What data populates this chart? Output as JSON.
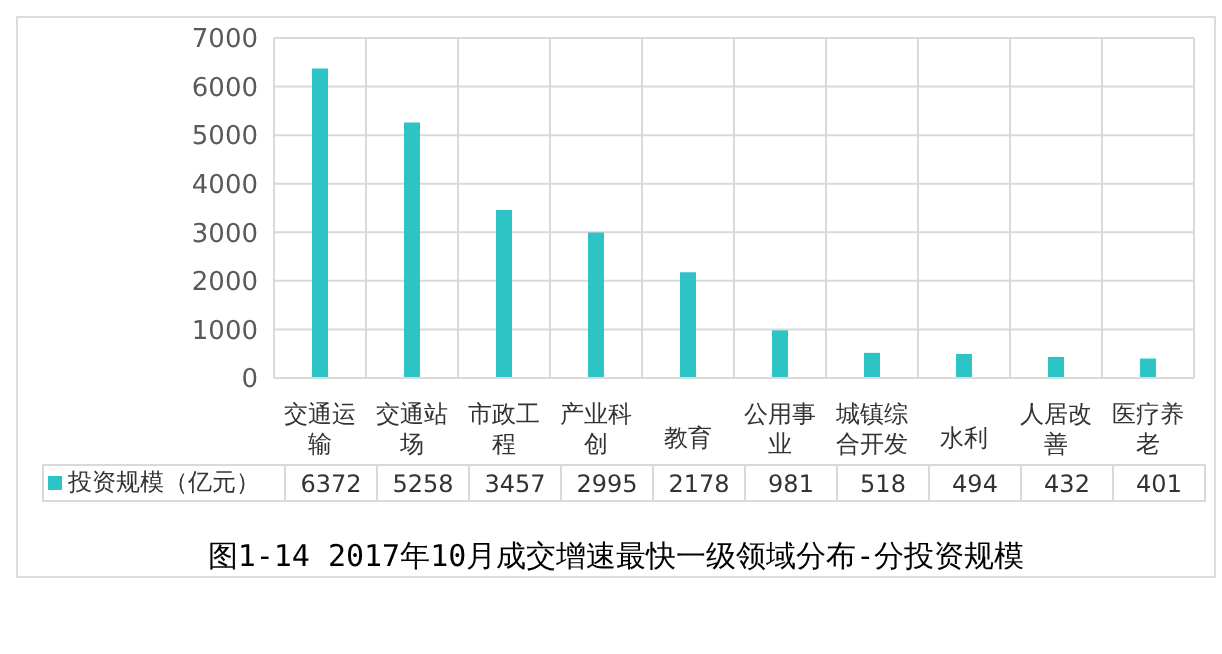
{
  "chart_data": {
    "type": "bar",
    "title": "图1-14 2017年10月成交增速最快一级领域分布-分投资规模",
    "categories": [
      "交通运输",
      "交通站场",
      "市政工程",
      "产业科创",
      "教育",
      "公用事业",
      "城镇综合开发",
      "水利",
      "人居改善",
      "医疗养老"
    ],
    "series": [
      {
        "name": "投资规模（亿元）",
        "color": "#2ec4c6",
        "values": [
          6372,
          5258,
          3457,
          2995,
          2178,
          981,
          518,
          494,
          432,
          401
        ]
      }
    ],
    "ylim": [
      0,
      7000
    ],
    "yticks": [
      0,
      1000,
      2000,
      3000,
      4000,
      5000,
      6000,
      7000
    ],
    "grid": true,
    "legend": "bottom left",
    "data_labels": true
  }
}
